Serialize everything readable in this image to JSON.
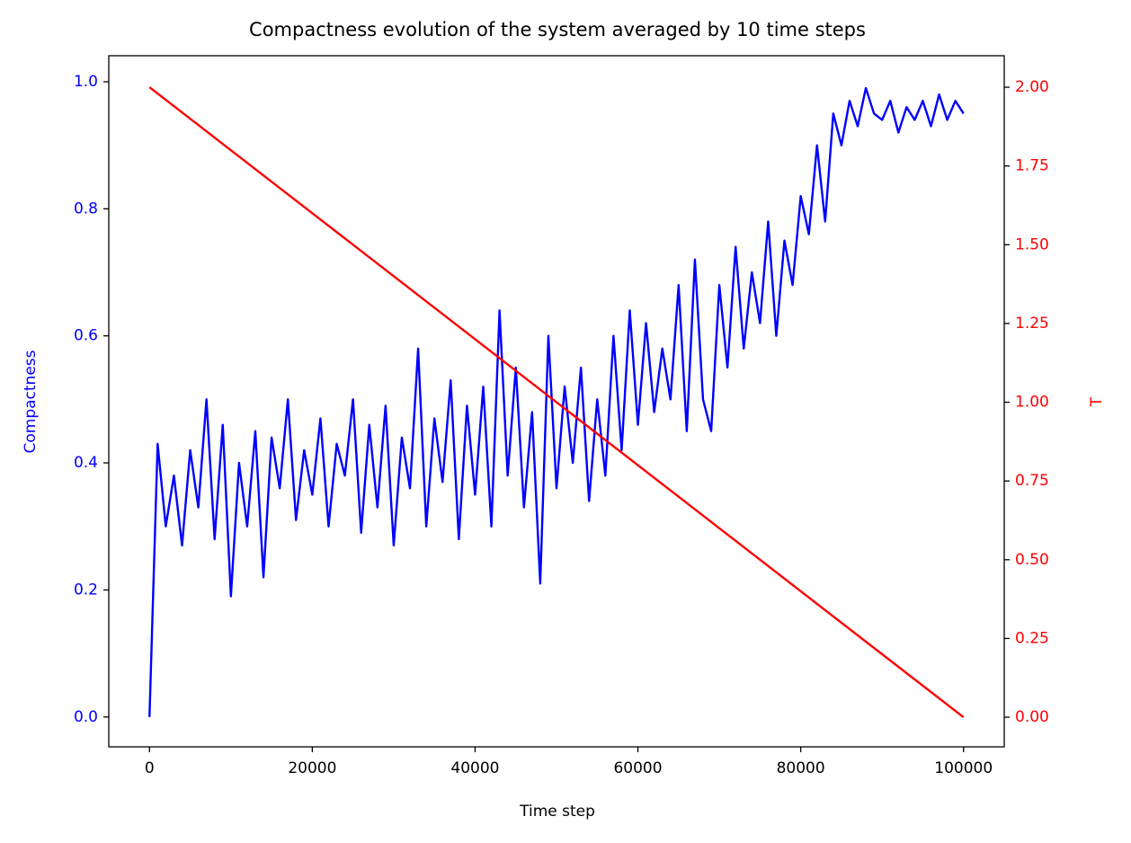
{
  "chart_data": {
    "type": "line",
    "title": "Compactness evolution of the system averaged by 10 time steps",
    "x_label": "Time step",
    "y_label": "Compactness",
    "y2_label": "T",
    "xlim": [
      -5000,
      105000
    ],
    "xticks": [
      0,
      20000,
      40000,
      60000,
      80000,
      100000
    ],
    "ylim": [
      -0.047,
      1.041
    ],
    "yticks": [
      {
        "value": 0,
        "label": "0.0"
      },
      0.2,
      0.4,
      0.6,
      0.8,
      {
        "value": 1,
        "label": "1.0"
      }
    ],
    "y_color": "#0000ff",
    "y2lim": [
      -0.094,
      2.1
    ],
    "y2ticks": [
      {
        "value": 0,
        "label": "0.00"
      },
      {
        "value": 0.25,
        "label": "0.25"
      },
      {
        "value": 0.5,
        "label": "0.50"
      },
      {
        "value": 0.75,
        "label": "0.75"
      },
      {
        "value": 1,
        "label": "1.00"
      },
      {
        "value": 1.25,
        "label": "1.25"
      },
      {
        "value": 1.5,
        "label": "1.50"
      },
      {
        "value": 1.75,
        "label": "1.75"
      },
      {
        "value": 2,
        "label": "2.00"
      }
    ],
    "y2_color": "#ff0000",
    "series": [
      {
        "color": "#0000ff",
        "x": [
          0,
          1000,
          2000,
          3000,
          4000,
          5000,
          6000,
          7000,
          8000,
          9000,
          10000,
          11000,
          12000,
          13000,
          14000,
          15000,
          16000,
          17000,
          18000,
          19000,
          20000,
          21000,
          22000,
          23000,
          24000,
          25000,
          26000,
          27000,
          28000,
          29000,
          30000,
          31000,
          32000,
          33000,
          34000,
          35000,
          36000,
          37000,
          38000,
          39000,
          40000,
          41000,
          42000,
          43000,
          44000,
          45000,
          46000,
          47000,
          48000,
          49000,
          50000,
          51000,
          52000,
          53000,
          54000,
          55000,
          56000,
          57000,
          58000,
          59000,
          60000,
          61000,
          62000,
          63000,
          64000,
          65000,
          66000,
          67000,
          68000,
          69000,
          70000,
          71000,
          72000,
          73000,
          74000,
          75000,
          76000,
          77000,
          78000,
          79000,
          80000,
          81000,
          82000,
          83000,
          84000,
          85000,
          86000,
          87000,
          88000,
          89000,
          90000,
          91000,
          92000,
          93000,
          94000,
          95000,
          96000,
          97000,
          98000,
          99000,
          100000
        ],
        "values": [
          0.0,
          0.43,
          0.3,
          0.38,
          0.27,
          0.42,
          0.33,
          0.5,
          0.28,
          0.46,
          0.19,
          0.4,
          0.3,
          0.45,
          0.22,
          0.44,
          0.36,
          0.5,
          0.31,
          0.42,
          0.35,
          0.47,
          0.3,
          0.43,
          0.38,
          0.5,
          0.29,
          0.46,
          0.33,
          0.49,
          0.27,
          0.44,
          0.36,
          0.58,
          0.3,
          0.47,
          0.37,
          0.53,
          0.28,
          0.49,
          0.35,
          0.52,
          0.3,
          0.64,
          0.38,
          0.55,
          0.33,
          0.48,
          0.21,
          0.6,
          0.36,
          0.52,
          0.4,
          0.55,
          0.34,
          0.5,
          0.38,
          0.6,
          0.42,
          0.64,
          0.46,
          0.62,
          0.48,
          0.58,
          0.5,
          0.68,
          0.45,
          0.72,
          0.5,
          0.45,
          0.68,
          0.55,
          0.74,
          0.58,
          0.7,
          0.62,
          0.78,
          0.6,
          0.75,
          0.68,
          0.82,
          0.76,
          0.9,
          0.78,
          0.95,
          0.9,
          0.97,
          0.93,
          0.99,
          0.95,
          0.94,
          0.97,
          0.92,
          0.96,
          0.94,
          0.97,
          0.93,
          0.98,
          0.94,
          0.97,
          0.95
        ]
      },
      {
        "color": "#ff0000",
        "axis": "y2",
        "x": [
          0,
          100000
        ],
        "values": [
          2,
          0
        ]
      }
    ]
  }
}
